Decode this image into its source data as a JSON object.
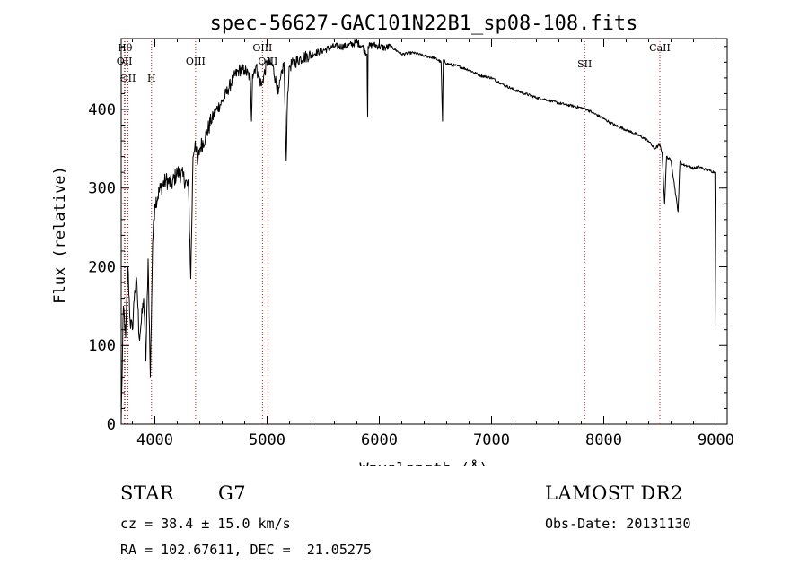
{
  "chart_data": {
    "type": "line",
    "title": "spec-56627-GAC101N22B1_sp08-108.fits",
    "xlabel": "Wavelength (Å)",
    "ylabel": "Flux (relative)",
    "xlim": [
      3700,
      9100
    ],
    "ylim": [
      0,
      490
    ],
    "xticks": [
      4000,
      5000,
      6000,
      7000,
      8000,
      9000
    ],
    "yticks": [
      0,
      100,
      200,
      300,
      400
    ],
    "grid": false,
    "line_color": "#000000",
    "marker_color": "#cc2222",
    "series": [
      {
        "x": [
          3700,
          3720,
          3740,
          3760,
          3780,
          3800,
          3820,
          3840,
          3860,
          3880,
          3900,
          3920,
          3940,
          3960,
          3980,
          4000,
          4050,
          4100,
          4150,
          4200,
          4250,
          4300,
          4320,
          4340,
          4360,
          4380,
          4400,
          4450,
          4500,
          4550,
          4600,
          4650,
          4700,
          4750,
          4800,
          4850,
          4861,
          4870,
          4900,
          4950,
          5000,
          5050,
          5100,
          5150,
          5170,
          5183,
          5200,
          5250,
          5300,
          5400,
          5500,
          5600,
          5700,
          5800,
          5850,
          5890,
          5896,
          5900,
          5950,
          6000,
          6050,
          6100,
          6200,
          6300,
          6400,
          6500,
          6550,
          6563,
          6570,
          6600,
          6700,
          6800,
          6900,
          7000,
          7100,
          7200,
          7300,
          7400,
          7500,
          7600,
          7700,
          7800,
          7850,
          7900,
          8000,
          8100,
          8200,
          8300,
          8400,
          8450,
          8498,
          8520,
          8542,
          8560,
          8600,
          8662,
          8680,
          8700,
          8750,
          8800,
          8850,
          8900,
          8950,
          8990,
          9000
        ],
        "y": [
          5,
          150,
          110,
          200,
          130,
          120,
          170,
          180,
          110,
          130,
          160,
          80,
          210,
          60,
          230,
          280,
          300,
          310,
          305,
          320,
          315,
          300,
          185,
          340,
          360,
          330,
          350,
          365,
          385,
          400,
          410,
          425,
          440,
          450,
          450,
          440,
          385,
          445,
          455,
          430,
          460,
          455,
          420,
          460,
          335,
          420,
          455,
          460,
          465,
          470,
          475,
          480,
          480,
          485,
          480,
          470,
          390,
          480,
          482,
          480,
          478,
          480,
          470,
          472,
          468,
          465,
          460,
          385,
          463,
          458,
          455,
          450,
          443,
          440,
          432,
          425,
          420,
          415,
          412,
          408,
          405,
          402,
          400,
          396,
          388,
          380,
          374,
          368,
          360,
          350,
          355,
          345,
          280,
          340,
          335,
          270,
          335,
          330,
          328,
          325,
          327,
          324,
          322,
          320,
          120
        ]
      }
    ],
    "lines": [
      {
        "wl": 3729,
        "label": "OII"
      },
      {
        "wl": 3734,
        "label": "Hθ"
      },
      {
        "wl": 3760,
        "label": "OII"
      },
      {
        "wl": 3970,
        "label": "H"
      },
      {
        "wl": 4363,
        "label": "OIII"
      },
      {
        "wl": 4959,
        "label": "OIII"
      },
      {
        "wl": 5007,
        "label": "OIII"
      },
      {
        "wl": 7830,
        "label": "SII"
      },
      {
        "wl": 8500,
        "label": "CaII"
      }
    ]
  },
  "info": {
    "object_class": "STAR",
    "subclass": "G7",
    "survey": "LAMOST DR2",
    "redshift": "cz = 38.4 ± 15.0 km/s",
    "obs_date": "Obs-Date: 20131130",
    "coords": "RA = 102.67611, DEC =  21.05275"
  }
}
